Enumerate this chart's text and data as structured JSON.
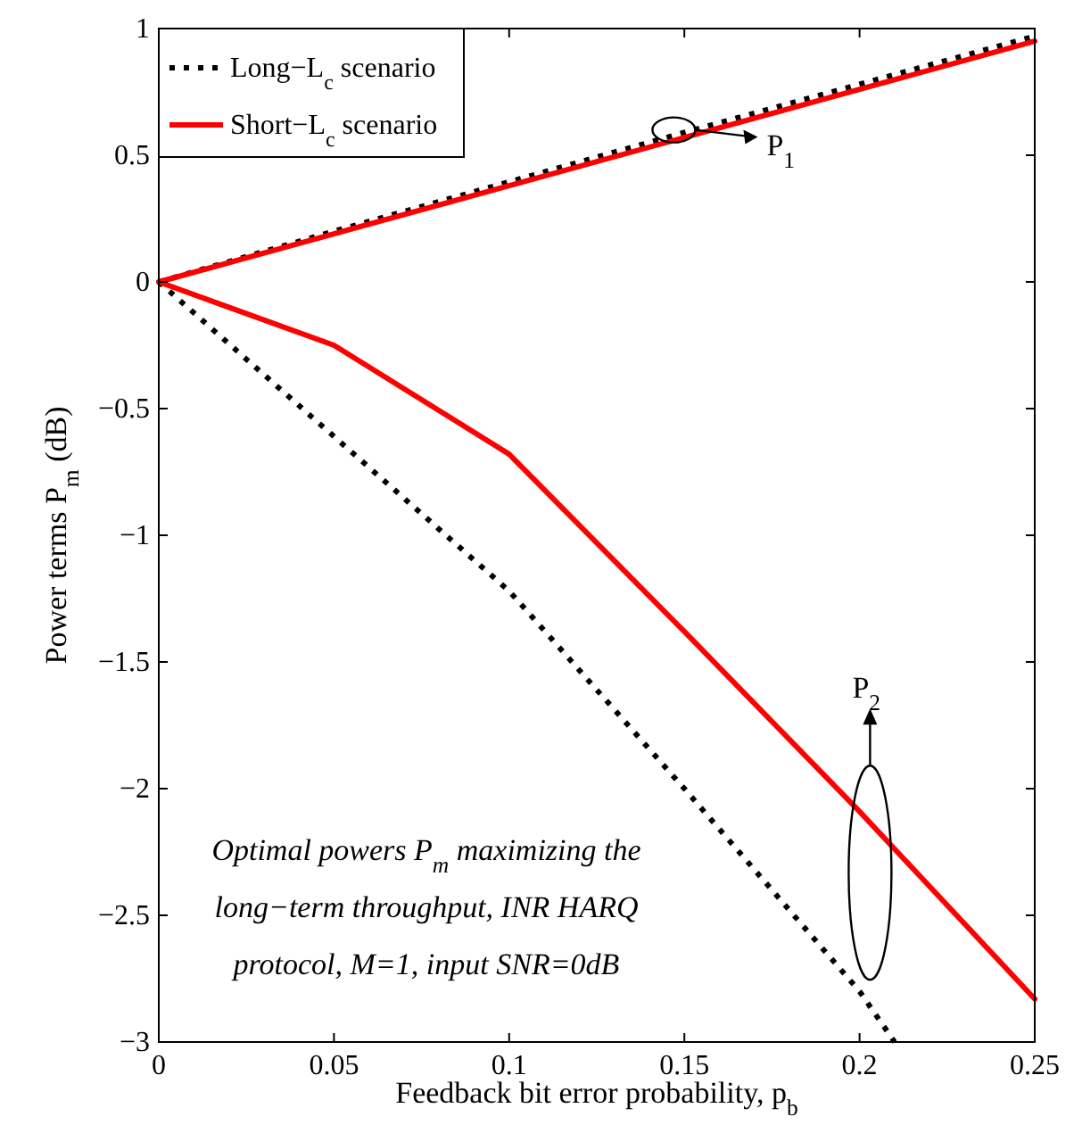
{
  "chart_data": {
    "type": "line",
    "xlabel": "Feedback bit error probability, p$_{b}$",
    "ylabel": "Power terms P$_{m}$ (dB)",
    "x": [
      0,
      0.05,
      0.1,
      0.15,
      0.2,
      0.25
    ],
    "series": [
      {
        "name": "Long−L$_{c}$ scenario",
        "color": "#000000",
        "line_style": "dotted",
        "values": [
          0,
          0.2,
          0.395,
          0.59,
          0.78,
          0.97
        ]
      },
      {
        "name": "Short−L$_{c}$ scenario",
        "color": "#ff0000",
        "line_style": "solid",
        "values": [
          0,
          0.19,
          0.38,
          0.57,
          0.76,
          0.95
        ]
      },
      {
        "color": "#000000",
        "line_style": "dotted",
        "x": [
          0,
          0.05,
          0.1,
          0.15,
          0.2,
          0.21
        ],
        "values": [
          0,
          -0.61,
          -1.22,
          -2.0,
          -2.8,
          -3
        ]
      },
      {
        "color": "#ff0000",
        "line_style": "solid",
        "values": [
          0,
          -0.25,
          -0.68,
          -1.38,
          -2.09,
          -2.83
        ]
      }
    ],
    "xlim": [
      0,
      0.25
    ],
    "ylim": [
      -3,
      1
    ],
    "xticks": [
      0,
      0.05,
      0.1,
      0.15,
      0.2,
      0.25
    ],
    "yticks": [
      {
        "value": -3,
        "label": "−3"
      },
      {
        "value": -2.5,
        "label": "−2.5"
      },
      {
        "value": -2,
        "label": "−2"
      },
      {
        "value": -1.5,
        "label": "−1.5"
      },
      {
        "value": -1,
        "label": "−1"
      },
      {
        "value": -0.5,
        "label": "−0.5"
      },
      0,
      0.5,
      1
    ],
    "grid": false,
    "legend": "top left",
    "marker": "none",
    "annotations": [
      "P$_{1}$",
      "P$_{2}$",
      "Optimal powers P$_{m}$ maximizing the",
      "long−term throughput, INR HARQ",
      "protocol, M=1, input SNR=0dB"
    ]
  }
}
